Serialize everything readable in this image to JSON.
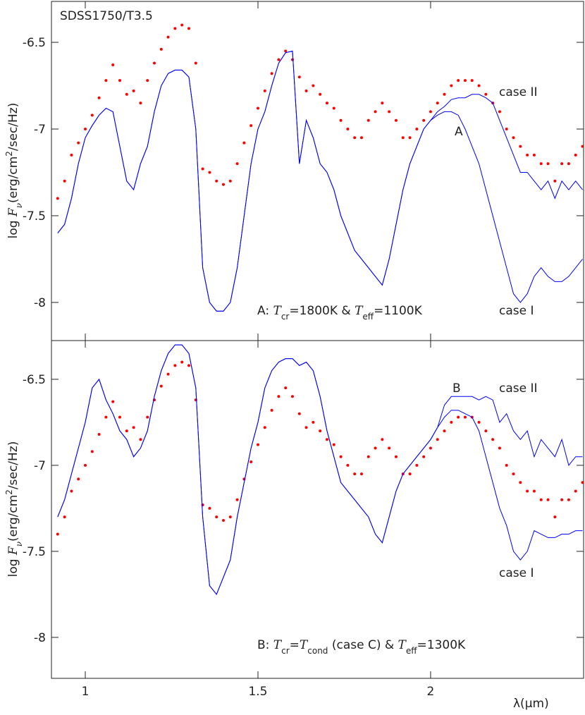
{
  "chart_data": [
    {
      "type": "line",
      "title": "SDSS1750/T3.5",
      "marker": "A",
      "annotation": [
        "A: ",
        "T",
        "cr",
        "=1800K & ",
        "T",
        "eff",
        "=1100K"
      ],
      "ylabel": [
        "log ",
        "F",
        "ν",
        "(erg/cm",
        "2",
        "/sec/Hz)"
      ],
      "xlim": [
        0.902,
        2.443
      ],
      "ylim": [
        -8.22,
        -6.264
      ],
      "xticks": [
        1,
        1.5,
        2
      ],
      "xtick_labels": false,
      "yticks": [
        -6.5,
        -7,
        -7.5,
        -8
      ],
      "x": [
        0.92,
        0.94,
        0.96,
        0.98,
        1.0,
        1.02,
        1.04,
        1.06,
        1.08,
        1.1,
        1.12,
        1.14,
        1.16,
        1.18,
        1.2,
        1.22,
        1.24,
        1.26,
        1.28,
        1.3,
        1.32,
        1.34,
        1.36,
        1.38,
        1.4,
        1.42,
        1.44,
        1.46,
        1.48,
        1.5,
        1.52,
        1.54,
        1.56,
        1.58,
        1.6,
        1.62,
        1.64,
        1.66,
        1.68,
        1.7,
        1.72,
        1.74,
        1.76,
        1.78,
        1.8,
        1.82,
        1.84,
        1.86,
        1.88,
        1.9,
        1.92,
        1.94,
        1.96,
        1.98,
        2.0,
        2.02,
        2.04,
        2.06,
        2.08,
        2.1,
        2.12,
        2.14,
        2.16,
        2.18,
        2.2,
        2.22,
        2.24,
        2.26,
        2.28,
        2.3,
        2.32,
        2.34,
        2.36,
        2.38,
        2.4,
        2.42,
        2.44
      ],
      "series": [
        {
          "style": "dots",
          "color": "#ff0000",
          "values": [
            -7.4,
            -7.3,
            -7.15,
            -7.08,
            -7.0,
            -6.92,
            -6.82,
            -6.72,
            -6.63,
            -6.72,
            -6.8,
            -6.78,
            -6.85,
            -6.72,
            -6.62,
            -6.54,
            -6.47,
            -6.42,
            -6.4,
            -6.42,
            -6.62,
            -7.23,
            -7.25,
            -7.3,
            -7.32,
            -7.3,
            -7.2,
            -7.08,
            -6.98,
            -6.88,
            -6.78,
            -6.68,
            -6.6,
            -6.55,
            -6.6,
            -6.7,
            -6.78,
            -6.75,
            -6.8,
            -6.85,
            -6.88,
            -6.95,
            -7.0,
            -7.05,
            -7.05,
            -6.95,
            -6.9,
            -6.85,
            -6.9,
            -6.95,
            -7.05,
            -7.05,
            -7.0,
            -6.95,
            -6.9,
            -6.85,
            -6.8,
            -6.75,
            -6.72,
            -6.72,
            -6.72,
            -6.75,
            -6.8,
            -6.85,
            -6.9,
            -7.0,
            -7.05,
            -7.1,
            -7.15,
            -7.15,
            -7.2,
            -7.2,
            -7.3,
            -7.2,
            -7.2,
            -7.15,
            -7.1
          ]
        },
        {
          "name": "case I",
          "style": "line",
          "color": "#0000ff",
          "values": [
            -7.6,
            -7.55,
            -7.4,
            -7.2,
            -7.05,
            -6.98,
            -6.92,
            -6.88,
            -6.9,
            -7.1,
            -7.3,
            -7.35,
            -7.2,
            -7.1,
            -6.9,
            -6.75,
            -6.68,
            -6.66,
            -6.66,
            -6.7,
            -7.0,
            -7.8,
            -8.0,
            -8.05,
            -8.05,
            -8.0,
            -7.8,
            -7.5,
            -7.2,
            -7.0,
            -6.9,
            -6.75,
            -6.62,
            -6.56,
            -6.55,
            -7.2,
            -6.95,
            -7.05,
            -7.2,
            -7.25,
            -7.35,
            -7.5,
            -7.6,
            -7.7,
            -7.75,
            -7.8,
            -7.85,
            -7.9,
            -7.75,
            -7.55,
            -7.35,
            -7.2,
            -7.1,
            -7.0,
            -6.95,
            -6.92,
            -6.9,
            -6.9,
            -6.92,
            -7.0,
            -7.1,
            -7.2,
            -7.35,
            -7.5,
            -7.65,
            -7.8,
            -7.95,
            -8.0,
            -7.95,
            -7.85,
            -7.8,
            -7.85,
            -7.88,
            -7.88,
            -7.85,
            -7.8,
            -7.75
          ]
        },
        {
          "name": "case II",
          "style": "line",
          "color": "#0000ff",
          "values": [
            -7.6,
            -7.55,
            -7.4,
            -7.2,
            -7.05,
            -6.98,
            -6.92,
            -6.88,
            -6.9,
            -7.1,
            -7.3,
            -7.35,
            -7.2,
            -7.1,
            -6.9,
            -6.75,
            -6.68,
            -6.66,
            -6.66,
            -6.7,
            -7.0,
            -7.8,
            -8.0,
            -8.05,
            -8.05,
            -8.0,
            -7.8,
            -7.5,
            -7.2,
            -7.0,
            -6.9,
            -6.75,
            -6.62,
            -6.56,
            -6.55,
            -7.2,
            -6.95,
            -7.05,
            -7.2,
            -7.25,
            -7.35,
            -7.5,
            -7.6,
            -7.7,
            -7.75,
            -7.8,
            -7.85,
            -7.9,
            -7.75,
            -7.55,
            -7.35,
            -7.2,
            -7.1,
            -7.0,
            -6.95,
            -6.9,
            -6.87,
            -6.83,
            -6.82,
            -6.82,
            -6.8,
            -6.8,
            -6.82,
            -6.85,
            -6.95,
            -7.05,
            -7.15,
            -7.25,
            -7.25,
            -7.3,
            -7.35,
            -7.3,
            -7.4,
            -7.3,
            -7.35,
            -7.3,
            -7.35
          ]
        }
      ]
    },
    {
      "type": "line",
      "marker": "B",
      "xlabel": "λ(μm)",
      "annotation": [
        "B: ",
        "T",
        "cr",
        "=",
        "T",
        "cond",
        " (case C) & ",
        "T",
        "eff",
        "=1300K"
      ],
      "ylabel": [
        "log ",
        "F",
        "ν",
        "(erg/cm",
        "2",
        "/sec/Hz)"
      ],
      "xlim": [
        0.902,
        2.443
      ],
      "ylim": [
        -8.238,
        -6.275
      ],
      "xticks": [
        1,
        1.5,
        2
      ],
      "xtick_labels": true,
      "yticks": [
        -6.5,
        -7,
        -7.5,
        -8
      ],
      "x": [
        0.92,
        0.94,
        0.96,
        0.98,
        1.0,
        1.02,
        1.04,
        1.06,
        1.08,
        1.1,
        1.12,
        1.14,
        1.16,
        1.18,
        1.2,
        1.22,
        1.24,
        1.26,
        1.28,
        1.3,
        1.32,
        1.34,
        1.36,
        1.38,
        1.4,
        1.42,
        1.44,
        1.46,
        1.48,
        1.5,
        1.52,
        1.54,
        1.56,
        1.58,
        1.6,
        1.62,
        1.64,
        1.66,
        1.68,
        1.7,
        1.72,
        1.74,
        1.76,
        1.78,
        1.8,
        1.82,
        1.84,
        1.86,
        1.88,
        1.9,
        1.92,
        1.94,
        1.96,
        1.98,
        2.0,
        2.02,
        2.04,
        2.06,
        2.08,
        2.1,
        2.12,
        2.14,
        2.16,
        2.18,
        2.2,
        2.22,
        2.24,
        2.26,
        2.28,
        2.3,
        2.32,
        2.34,
        2.36,
        2.38,
        2.4,
        2.42,
        2.44
      ],
      "series": [
        {
          "style": "dots",
          "color": "#ff0000",
          "values": [
            -7.4,
            -7.3,
            -7.15,
            -7.08,
            -7.0,
            -6.92,
            -6.82,
            -6.72,
            -6.63,
            -6.72,
            -6.8,
            -6.78,
            -6.85,
            -6.72,
            -6.62,
            -6.54,
            -6.47,
            -6.42,
            -6.4,
            -6.42,
            -6.62,
            -7.23,
            -7.25,
            -7.3,
            -7.32,
            -7.3,
            -7.2,
            -7.08,
            -6.98,
            -6.88,
            -6.78,
            -6.68,
            -6.6,
            -6.55,
            -6.6,
            -6.7,
            -6.78,
            -6.75,
            -6.8,
            -6.85,
            -6.88,
            -6.95,
            -7.0,
            -7.05,
            -7.05,
            -6.95,
            -6.9,
            -6.85,
            -6.9,
            -6.95,
            -7.05,
            -7.05,
            -7.0,
            -6.95,
            -6.9,
            -6.85,
            -6.8,
            -6.75,
            -6.72,
            -6.72,
            -6.72,
            -6.75,
            -6.8,
            -6.85,
            -6.9,
            -7.0,
            -7.05,
            -7.1,
            -7.15,
            -7.15,
            -7.2,
            -7.2,
            -7.3,
            -7.2,
            -7.2,
            -7.15,
            -7.1
          ]
        },
        {
          "name": "case I",
          "style": "line",
          "color": "#0000ff",
          "values": [
            -7.3,
            -7.2,
            -7.05,
            -6.9,
            -6.75,
            -6.55,
            -6.5,
            -6.62,
            -6.7,
            -6.8,
            -6.85,
            -6.95,
            -6.9,
            -6.8,
            -6.6,
            -6.45,
            -6.35,
            -6.3,
            -6.3,
            -6.35,
            -6.55,
            -7.3,
            -7.7,
            -7.75,
            -7.65,
            -7.55,
            -7.3,
            -7.1,
            -6.9,
            -6.75,
            -6.55,
            -6.45,
            -6.4,
            -6.38,
            -6.38,
            -6.42,
            -6.4,
            -6.45,
            -6.6,
            -6.8,
            -6.95,
            -7.1,
            -7.15,
            -7.2,
            -7.25,
            -7.3,
            -7.4,
            -7.45,
            -7.3,
            -7.15,
            -7.05,
            -7.0,
            -6.95,
            -6.9,
            -6.85,
            -6.78,
            -6.72,
            -6.68,
            -6.68,
            -6.7,
            -6.72,
            -6.8,
            -6.95,
            -7.1,
            -7.25,
            -7.35,
            -7.5,
            -7.55,
            -7.5,
            -7.38,
            -7.4,
            -7.42,
            -7.42,
            -7.4,
            -7.4,
            -7.38,
            -7.38
          ]
        },
        {
          "name": "case II",
          "style": "line",
          "color": "#0000ff",
          "values": [
            -7.3,
            -7.2,
            -7.05,
            -6.9,
            -6.75,
            -6.55,
            -6.5,
            -6.62,
            -6.7,
            -6.8,
            -6.85,
            -6.95,
            -6.9,
            -6.8,
            -6.6,
            -6.45,
            -6.35,
            -6.3,
            -6.3,
            -6.35,
            -6.55,
            -7.3,
            -7.7,
            -7.75,
            -7.65,
            -7.55,
            -7.3,
            -7.1,
            -6.9,
            -6.75,
            -6.55,
            -6.45,
            -6.4,
            -6.38,
            -6.38,
            -6.42,
            -6.4,
            -6.45,
            -6.6,
            -6.8,
            -6.95,
            -7.1,
            -7.15,
            -7.2,
            -7.25,
            -7.3,
            -7.4,
            -7.45,
            -7.3,
            -7.15,
            -7.05,
            -7.0,
            -6.95,
            -6.9,
            -6.85,
            -6.78,
            -6.65,
            -6.6,
            -6.6,
            -6.6,
            -6.6,
            -6.62,
            -6.6,
            -6.62,
            -6.75,
            -6.7,
            -6.8,
            -6.85,
            -6.8,
            -6.95,
            -6.85,
            -6.9,
            -6.95,
            -6.85,
            -7.0,
            -6.95,
            -6.95
          ]
        }
      ]
    }
  ]
}
